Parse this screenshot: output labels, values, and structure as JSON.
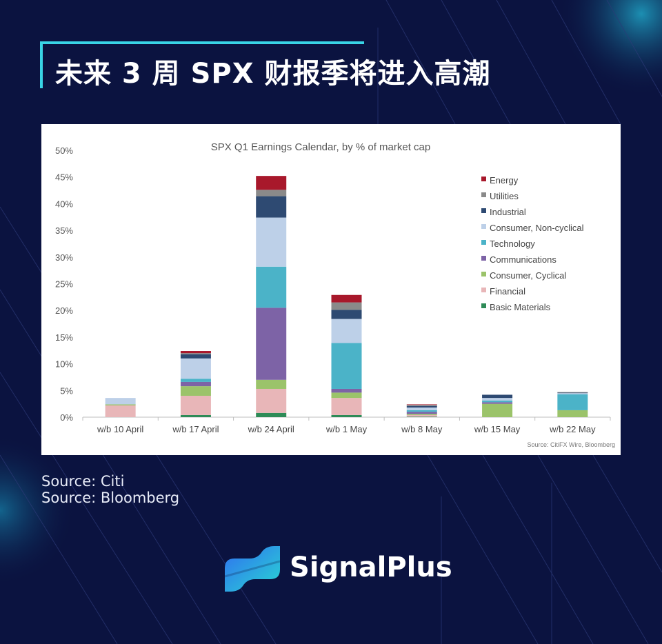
{
  "title": "未来 3 周 SPX 财报季将进入高潮",
  "sources": [
    "Source: Citi",
    "Source: Bloomberg"
  ],
  "logo": {
    "text": "SignalPlus"
  },
  "chart_data": {
    "type": "bar",
    "stacked": true,
    "title": "SPX Q1 Earnings Calendar, by % of market cap",
    "source_note": "Source: CitiFX Wire, Bloomberg",
    "categories": [
      "w/b 10 April",
      "w/b 17 April",
      "w/b 24 April",
      "w/b 1 May",
      "w/b 8 May",
      "w/b 15 May",
      "w/b 22 May"
    ],
    "ylim": [
      0,
      50
    ],
    "yticks": [
      0,
      5,
      10,
      15,
      20,
      25,
      30,
      35,
      40,
      45,
      50
    ],
    "ytick_format": "%",
    "legend_position": "top-right",
    "series": [
      {
        "name": "Basic Materials",
        "color": "#2e8b57",
        "values": [
          0,
          0.4,
          0.8,
          0.4,
          0.1,
          0,
          0
        ]
      },
      {
        "name": "Financial",
        "color": "#e8b6b8",
        "values": [
          2.2,
          3.6,
          4.5,
          3.2,
          0.3,
          0,
          0
        ]
      },
      {
        "name": "Consumer, Cyclical",
        "color": "#9bc36a",
        "values": [
          0.2,
          1.8,
          1.7,
          1.0,
          0.2,
          2.5,
          1.3
        ]
      },
      {
        "name": "Communications",
        "color": "#7d63a6",
        "values": [
          0,
          0.8,
          13.5,
          0.7,
          0.4,
          0.3,
          0
        ]
      },
      {
        "name": "Technology",
        "color": "#4bb3c8",
        "values": [
          0,
          0.6,
          7.7,
          8.6,
          0.3,
          0.3,
          3.0
        ]
      },
      {
        "name": "Consumer, Non-cyclical",
        "color": "#bdd0e8",
        "values": [
          1.2,
          3.8,
          9.2,
          4.5,
          0.5,
          0.5,
          0.2
        ]
      },
      {
        "name": "Industrial",
        "color": "#2e4a72",
        "values": [
          0,
          0.8,
          4.0,
          1.7,
          0.3,
          0.6,
          0.1
        ]
      },
      {
        "name": "Utilities",
        "color": "#8a8a8a",
        "values": [
          0,
          0.2,
          1.2,
          1.4,
          0.2,
          0,
          0.1
        ]
      },
      {
        "name": "Energy",
        "color": "#a8182b",
        "values": [
          0,
          0.4,
          2.6,
          1.4,
          0.1,
          0,
          0
        ]
      }
    ]
  }
}
